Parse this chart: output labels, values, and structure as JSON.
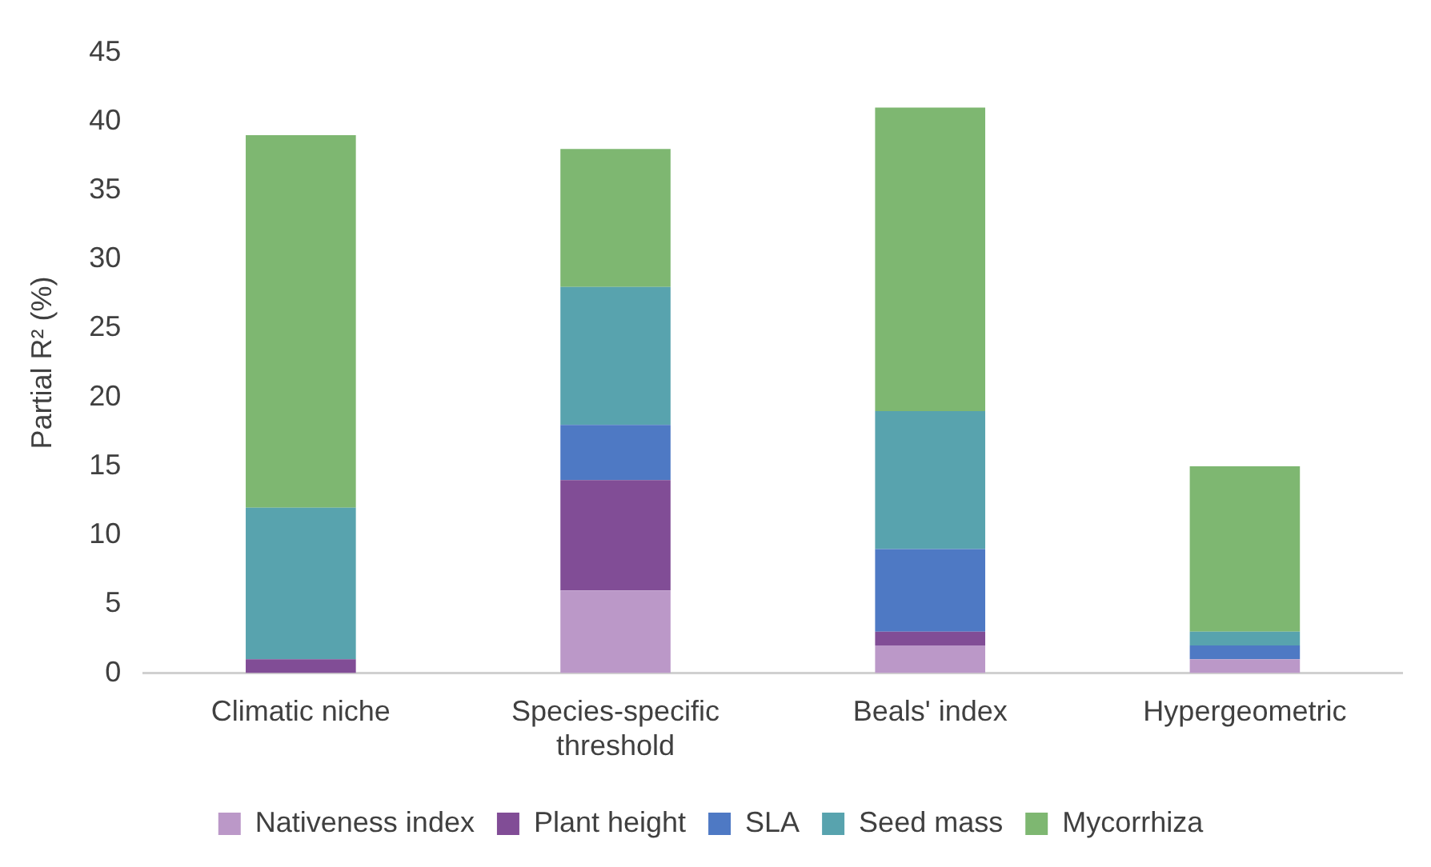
{
  "chart_data": {
    "type": "bar",
    "stacked": true,
    "ylabel": "Partial R² (%)",
    "categories": [
      "Climatic niche",
      "Species-specific threshold",
      "Beals' index",
      "Hypergeometric"
    ],
    "series": [
      {
        "name": "Nativeness index",
        "color": "#bb98c8",
        "values": [
          0,
          6,
          2,
          1
        ]
      },
      {
        "name": "Plant height",
        "color": "#814d96",
        "values": [
          1,
          8,
          1,
          0
        ]
      },
      {
        "name": "SLA",
        "color": "#4e79c4",
        "values": [
          0,
          4,
          6,
          1
        ]
      },
      {
        "name": "Seed mass",
        "color": "#58a3ae",
        "values": [
          11,
          10,
          10,
          1
        ]
      },
      {
        "name": "Mycorrhiza",
        "color": "#7eb771",
        "values": [
          27,
          10,
          22,
          12
        ]
      }
    ],
    "ylim": [
      0,
      45
    ],
    "yticks": [
      0,
      5,
      10,
      15,
      20,
      25,
      30,
      35,
      40,
      45
    ],
    "grid": false,
    "legend": "bottom"
  }
}
